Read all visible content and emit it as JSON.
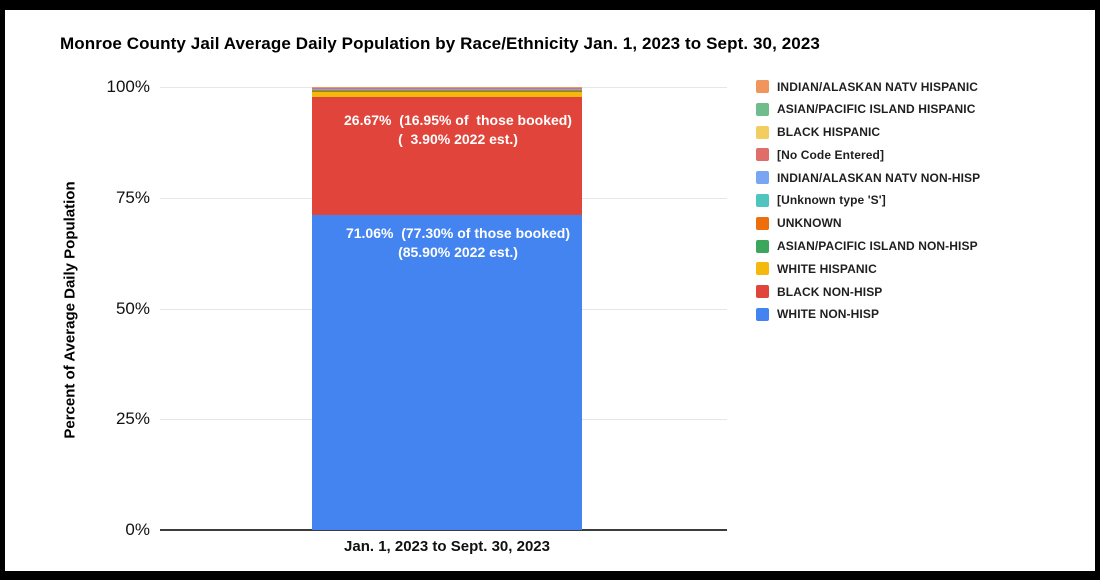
{
  "title": "Monroe County Jail Average Daily Population by Race/Ethnicity Jan. 1, 2023 to Sept. 30, 2023",
  "chart_data": {
    "type": "bar",
    "stacked": true,
    "title": "Monroe County Jail Average Daily Population by Race/Ethnicity Jan. 1, 2023 to Sept. 30, 2023",
    "xlabel": "Jan. 1, 2023 to Sept. 30, 2023",
    "ylabel": "Percent of Average Daily Population",
    "ylim": [
      0,
      100
    ],
    "y_ticks": [
      "0%",
      "25%",
      "50%",
      "75%",
      "100%"
    ],
    "y_tick_values": [
      0,
      25,
      50,
      75,
      100
    ],
    "categories": [
      "Jan. 1, 2023 to Sept. 30, 2023"
    ],
    "legend_position": "right",
    "grid": true,
    "series": [
      {
        "name": "INDIAN/ALASKAN NATV HISPANIC",
        "color": "#F0955B",
        "value": 0.05
      },
      {
        "name": "ASIAN/PACIFIC ISLAND HISPANIC",
        "color": "#6FBC8C",
        "value": 0.05
      },
      {
        "name": "BLACK HISPANIC",
        "color": "#F2CE60",
        "value": 0.15
      },
      {
        "name": "[No Code Entered]",
        "color": "#DF6E6A",
        "value": 0.1
      },
      {
        "name": "INDIAN/ALASKAN NATV NON-HISP",
        "color": "#79A6F2",
        "value": 0.1
      },
      {
        "name": "[Unknown type 'S']",
        "color": "#50C4BE",
        "value": 0.1
      },
      {
        "name": "UNKNOWN",
        "color": "#EE6E0C",
        "value": 0.45
      },
      {
        "name": "ASIAN/PACIFIC ISLAND NON-HISP",
        "color": "#3BA65C",
        "value": 0.2
      },
      {
        "name": "WHITE HISPANIC",
        "color": "#F5B80C",
        "value": 1.07
      },
      {
        "name": "BLACK NON-HISP",
        "color": "#E0443A",
        "value": 26.67,
        "label_line1": "26.67%  (16.95% of  those booked)",
        "label_line2": "(  3.90% 2022 est.)"
      },
      {
        "name": "WHITE NON-HISP",
        "color": "#4484F0",
        "value": 71.06,
        "label_line1": "71.06%  (77.30% of those booked)",
        "label_line2": "(85.90% 2022 est.)"
      }
    ]
  }
}
